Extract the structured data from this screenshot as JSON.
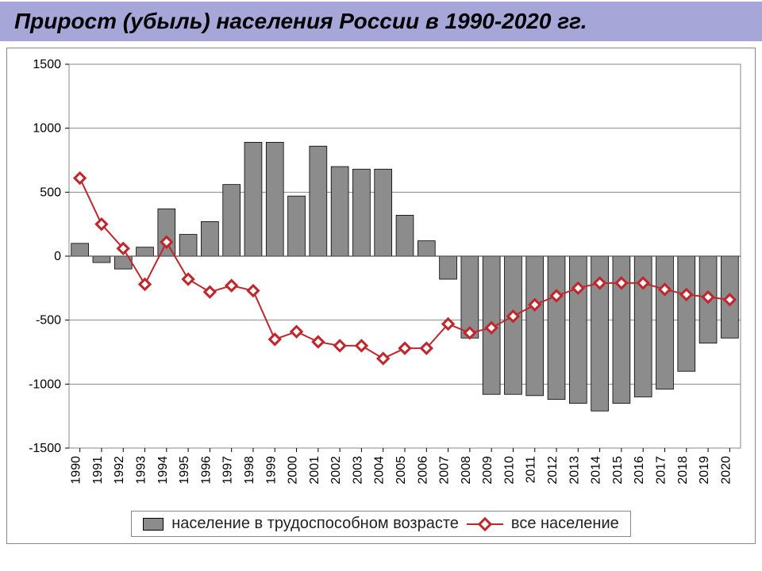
{
  "title": "Прирост (убыль) населения России в 1990-2020 гг.",
  "chart": {
    "type": "bar+line",
    "background_color": "#ffffff",
    "plot_border_color": "#888888",
    "grid_color": "#888888",
    "grid_width": 1,
    "bar_color": "#8c8c8c",
    "bar_border_color": "#000000",
    "line_color": "#c0272d",
    "line_width": 2,
    "marker_size": 8,
    "marker_shape": "diamond",
    "tick_label_fontsize": 16,
    "ylim": [
      -1500,
      1500
    ],
    "ytick_step": 500,
    "ytick_labels": [
      "-1500",
      "-1000",
      "-500",
      "0",
      "500",
      "1000",
      "1500"
    ],
    "years": [
      "1990",
      "1991",
      "1992",
      "1993",
      "1994",
      "1995",
      "1996",
      "1997",
      "1998",
      "1999",
      "2000",
      "2001",
      "2002",
      "2003",
      "2004",
      "2005",
      "2006",
      "2007",
      "2008",
      "2009",
      "2010",
      "2011",
      "2012",
      "2013",
      "2014",
      "2015",
      "2016",
      "2017",
      "2018",
      "2019",
      "2020"
    ],
    "bar_values": [
      100,
      -50,
      -100,
      70,
      370,
      170,
      270,
      560,
      890,
      890,
      470,
      860,
      700,
      680,
      680,
      320,
      120,
      -180,
      -640,
      -1080,
      -1080,
      -1090,
      -1120,
      -1150,
      -1210,
      -1150,
      -1100,
      -1040,
      -900,
      -680,
      -640
    ],
    "line_values": [
      610,
      250,
      60,
      -220,
      110,
      -180,
      -280,
      -230,
      -270,
      -650,
      -590,
      -670,
      -700,
      -700,
      -800,
      -720,
      -720,
      -530,
      -600,
      -560,
      -470,
      -380,
      -310,
      -250,
      -210,
      -210,
      -210,
      -260,
      -300,
      -320,
      -340
    ]
  },
  "legend": {
    "bar_label": "население в трудоспособном возрасте",
    "line_label": "все население"
  }
}
